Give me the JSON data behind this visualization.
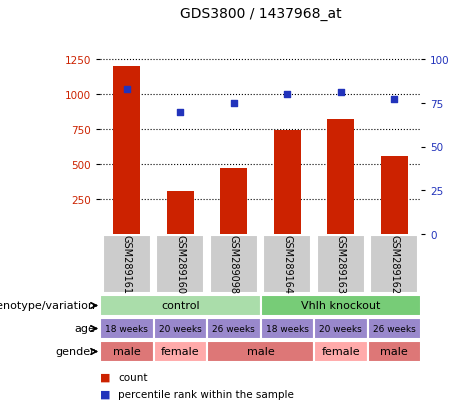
{
  "title": "GDS3800 / 1437968_at",
  "samples": [
    "GSM289161",
    "GSM289160",
    "GSM289098",
    "GSM289164",
    "GSM289163",
    "GSM289162"
  ],
  "counts": [
    1200,
    305,
    470,
    740,
    820,
    560
  ],
  "percentile_ranks": [
    83,
    70,
    75,
    80,
    81,
    77
  ],
  "left_ylim": [
    0,
    1500
  ],
  "left_yticks": [
    250,
    500,
    750,
    1000,
    1250
  ],
  "right_ylim": [
    0,
    120
  ],
  "right_yticks": [
    0,
    25,
    50,
    75,
    100
  ],
  "bar_color": "#cc2200",
  "dot_color": "#2233bb",
  "genotype_groups": [
    {
      "label": "control",
      "start": 0,
      "end": 3,
      "color": "#aaddaa"
    },
    {
      "label": "Vhlh knockout",
      "start": 3,
      "end": 6,
      "color": "#77cc77"
    }
  ],
  "age_labels": [
    "18 weeks",
    "20 weeks",
    "26 weeks",
    "18 weeks",
    "20 weeks",
    "26 weeks"
  ],
  "age_color": "#9988cc",
  "gender_segs": [
    {
      "label": "male",
      "start": 0,
      "end": 1,
      "color": "#dd7777"
    },
    {
      "label": "female",
      "start": 1,
      "end": 2,
      "color": "#ffaaaa"
    },
    {
      "label": "male",
      "start": 2,
      "end": 4,
      "color": "#dd7777"
    },
    {
      "label": "female",
      "start": 4,
      "end": 5,
      "color": "#ffaaaa"
    },
    {
      "label": "male",
      "start": 5,
      "end": 6,
      "color": "#dd7777"
    }
  ],
  "row_labels": [
    "genotype/variation",
    "age",
    "gender"
  ],
  "legend_labels": [
    "count",
    "percentile rank within the sample"
  ],
  "sample_box_color": "#cccccc"
}
